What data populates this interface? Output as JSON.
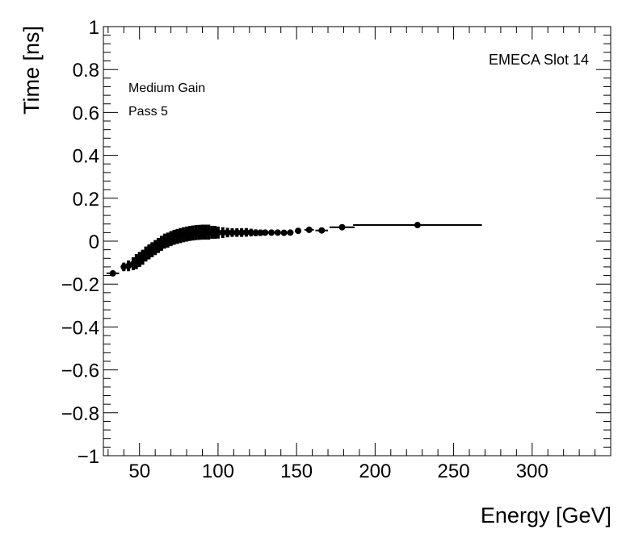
{
  "chart_data": {
    "type": "scatter",
    "title": "",
    "xlabel": "Energy [GeV]",
    "ylabel": "Time [ns]",
    "xlim": [
      27,
      350
    ],
    "ylim": [
      -1,
      1
    ],
    "x_ticks": [
      50,
      100,
      150,
      200,
      250,
      300
    ],
    "x_tick_labels": [
      "50",
      "100",
      "150",
      "200",
      "250",
      "300"
    ],
    "y_ticks": [
      -1,
      -0.8,
      -0.6,
      -0.4,
      -0.2,
      0,
      0.2,
      0.4,
      0.6,
      0.8,
      1
    ],
    "y_tick_labels": [
      "−1",
      "−0.8",
      "−0.6",
      "−0.4",
      "−0.2",
      "0",
      "0.2",
      "0.4",
      "0.6",
      "0.8",
      "1"
    ],
    "annotations": {
      "slot": "EMECA Slot 14",
      "gain": "Medium Gain",
      "pass": "Pass 5"
    },
    "marker_color": "#000000",
    "grid": false,
    "points": [
      {
        "x": 33,
        "y": -0.15,
        "xerr": 4,
        "yerr": 0.01
      },
      {
        "x": 40,
        "y": -0.12,
        "xerr": 1,
        "yerr": 0.02
      },
      {
        "x": 43,
        "y": -0.115,
        "xerr": 1,
        "yerr": 0.025
      },
      {
        "x": 46,
        "y": -0.105,
        "xerr": 1,
        "yerr": 0.03
      },
      {
        "x": 48,
        "y": -0.095,
        "xerr": 1,
        "yerr": 0.035
      },
      {
        "x": 50,
        "y": -0.085,
        "xerr": 1,
        "yerr": 0.035
      },
      {
        "x": 52,
        "y": -0.075,
        "xerr": 1,
        "yerr": 0.035
      },
      {
        "x": 54,
        "y": -0.06,
        "xerr": 1,
        "yerr": 0.035
      },
      {
        "x": 56,
        "y": -0.05,
        "xerr": 1,
        "yerr": 0.035
      },
      {
        "x": 58,
        "y": -0.04,
        "xerr": 1,
        "yerr": 0.035
      },
      {
        "x": 60,
        "y": -0.03,
        "xerr": 1,
        "yerr": 0.035
      },
      {
        "x": 62,
        "y": -0.02,
        "xerr": 1,
        "yerr": 0.035
      },
      {
        "x": 64,
        "y": -0.01,
        "xerr": 1,
        "yerr": 0.035
      },
      {
        "x": 66,
        "y": 0.0,
        "xerr": 1,
        "yerr": 0.035
      },
      {
        "x": 68,
        "y": 0.005,
        "xerr": 1,
        "yerr": 0.035
      },
      {
        "x": 70,
        "y": 0.012,
        "xerr": 1,
        "yerr": 0.035
      },
      {
        "x": 72,
        "y": 0.018,
        "xerr": 1,
        "yerr": 0.035
      },
      {
        "x": 74,
        "y": 0.022,
        "xerr": 1,
        "yerr": 0.035
      },
      {
        "x": 76,
        "y": 0.026,
        "xerr": 1,
        "yerr": 0.035
      },
      {
        "x": 78,
        "y": 0.03,
        "xerr": 1,
        "yerr": 0.035
      },
      {
        "x": 80,
        "y": 0.033,
        "xerr": 1,
        "yerr": 0.035
      },
      {
        "x": 82,
        "y": 0.036,
        "xerr": 1,
        "yerr": 0.035
      },
      {
        "x": 84,
        "y": 0.038,
        "xerr": 1,
        "yerr": 0.035
      },
      {
        "x": 86,
        "y": 0.04,
        "xerr": 1,
        "yerr": 0.035
      },
      {
        "x": 88,
        "y": 0.041,
        "xerr": 1,
        "yerr": 0.035
      },
      {
        "x": 90,
        "y": 0.042,
        "xerr": 1,
        "yerr": 0.035
      },
      {
        "x": 92,
        "y": 0.042,
        "xerr": 1,
        "yerr": 0.035
      },
      {
        "x": 94,
        "y": 0.042,
        "xerr": 1,
        "yerr": 0.035
      },
      {
        "x": 96,
        "y": 0.041,
        "xerr": 1,
        "yerr": 0.03
      },
      {
        "x": 98,
        "y": 0.041,
        "xerr": 1,
        "yerr": 0.03
      },
      {
        "x": 100,
        "y": 0.04,
        "xerr": 1,
        "yerr": 0.028
      },
      {
        "x": 103,
        "y": 0.04,
        "xerr": 1,
        "yerr": 0.025
      },
      {
        "x": 106,
        "y": 0.04,
        "xerr": 1,
        "yerr": 0.022
      },
      {
        "x": 109,
        "y": 0.04,
        "xerr": 1,
        "yerr": 0.02
      },
      {
        "x": 112,
        "y": 0.04,
        "xerr": 1,
        "yerr": 0.02
      },
      {
        "x": 115,
        "y": 0.04,
        "xerr": 1,
        "yerr": 0.02
      },
      {
        "x": 118,
        "y": 0.041,
        "xerr": 1,
        "yerr": 0.02
      },
      {
        "x": 121,
        "y": 0.04,
        "xerr": 1,
        "yerr": 0.018
      },
      {
        "x": 124,
        "y": 0.039,
        "xerr": 1,
        "yerr": 0.016
      },
      {
        "x": 127,
        "y": 0.039,
        "xerr": 1,
        "yerr": 0.015
      },
      {
        "x": 130,
        "y": 0.04,
        "xerr": 1.5,
        "yerr": 0.014
      },
      {
        "x": 134,
        "y": 0.04,
        "xerr": 1.5,
        "yerr": 0.013
      },
      {
        "x": 138,
        "y": 0.04,
        "xerr": 1.5,
        "yerr": 0.012
      },
      {
        "x": 142,
        "y": 0.039,
        "xerr": 1.5,
        "yerr": 0.012
      },
      {
        "x": 146,
        "y": 0.04,
        "xerr": 2,
        "yerr": 0.01
      },
      {
        "x": 151,
        "y": 0.048,
        "xerr": 2,
        "yerr": 0.01
      },
      {
        "x": 158,
        "y": 0.053,
        "xerr": 3,
        "yerr": 0.01
      },
      {
        "x": 166,
        "y": 0.05,
        "xerr": 4,
        "yerr": 0.01
      },
      {
        "x": 179,
        "y": 0.065,
        "xerr": 8,
        "yerr": 0.01
      },
      {
        "x": 227,
        "y": 0.075,
        "xerr": 41,
        "yerr": 0.01
      }
    ]
  }
}
